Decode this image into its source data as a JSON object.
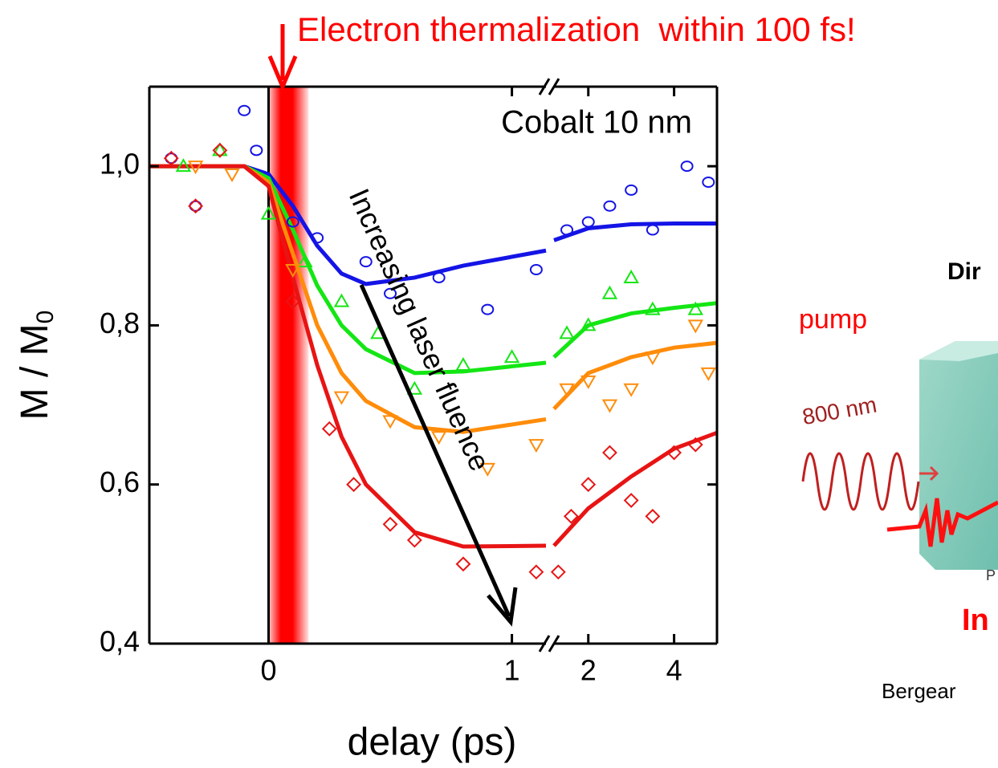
{
  "chart_data": {
    "type": "scatter",
    "title": "Electron thermalization  within 100 fs!",
    "annotation": "Cobalt 10 nm",
    "arrow_label": "Increasing laser fluence",
    "xlabel": "delay (ps)",
    "ylabel": "M / M",
    "ylabel_sub": "0",
    "x_segments": [
      {
        "xlim": [
          -0.49,
          1.14
        ],
        "xticks": [
          0,
          1
        ]
      },
      {
        "xlim": [
          1.2,
          5
        ],
        "xticks": [
          2,
          4
        ]
      }
    ],
    "ylim": [
      0.4,
      1.1
    ],
    "yticks": [
      {
        "value": 0.4,
        "label": "0,4"
      },
      {
        "value": 0.6,
        "label": "0,6"
      },
      {
        "value": 0.8,
        "label": "0,8"
      },
      {
        "value": 1.0,
        "label": "1,0"
      }
    ],
    "series": [
      {
        "color": "#1414e6",
        "marker": "circle",
        "x": [
          -0.4,
          -0.3,
          -0.1,
          -0.05,
          0.1,
          0.2,
          0.4,
          0.5,
          0.7,
          0.9,
          1.1,
          1.5,
          2,
          2.5,
          3,
          3.5,
          4.3,
          4.8
        ],
        "values": [
          1.01,
          0.95,
          1.07,
          1.02,
          0.93,
          0.91,
          0.88,
          0.84,
          0.86,
          0.82,
          0.87,
          0.92,
          0.93,
          0.95,
          0.97,
          0.92,
          1.0,
          0.98
        ],
        "fit": [
          {
            "x": [
              -0.49,
              -0.1,
              0,
              0.1,
              0.2,
              0.3,
              0.4,
              0.6,
              0.8,
              1.14
            ],
            "values": [
              1.0,
              1.0,
              0.99,
              0.95,
              0.9,
              0.865,
              0.852,
              0.86,
              0.875,
              0.894
            ]
          },
          {
            "x": [
              1.2,
              2,
              3,
              4,
              5
            ],
            "values": [
              0.907,
              0.922,
              0.927,
              0.928,
              0.928
            ]
          }
        ]
      },
      {
        "color": "#14e614",
        "marker": "triangle-up",
        "x": [
          -0.35,
          -0.2,
          0,
          0.15,
          0.3,
          0.45,
          0.6,
          0.8,
          1.0,
          1.5,
          2,
          2.5,
          3,
          3.5,
          4.5
        ],
        "values": [
          1.0,
          1.02,
          0.94,
          0.88,
          0.83,
          0.79,
          0.72,
          0.75,
          0.76,
          0.79,
          0.8,
          0.84,
          0.86,
          0.82,
          0.82
        ],
        "fit": [
          {
            "x": [
              -0.49,
              -0.1,
              0,
              0.1,
              0.2,
              0.3,
              0.4,
              0.6,
              0.8,
              1.14
            ],
            "values": [
              1.0,
              1.0,
              0.985,
              0.92,
              0.85,
              0.8,
              0.77,
              0.74,
              0.742,
              0.753
            ]
          },
          {
            "x": [
              1.2,
              2,
              3,
              4,
              5
            ],
            "values": [
              0.76,
              0.8,
              0.815,
              0.822,
              0.828
            ]
          }
        ]
      },
      {
        "color": "#ff8c0a",
        "marker": "triangle-down",
        "x": [
          -0.3,
          -0.15,
          0.1,
          0.3,
          0.5,
          0.7,
          0.9,
          1.1,
          1.5,
          2,
          2.5,
          3,
          3.5,
          4.5,
          4.8
        ],
        "values": [
          1.0,
          0.99,
          0.87,
          0.71,
          0.68,
          0.66,
          0.62,
          0.65,
          0.72,
          0.73,
          0.7,
          0.72,
          0.76,
          0.8,
          0.74
        ],
        "fit": [
          {
            "x": [
              -0.49,
              -0.1,
              0,
              0.1,
              0.2,
              0.3,
              0.4,
              0.6,
              0.8,
              1.14
            ],
            "values": [
              1.0,
              1.0,
              0.98,
              0.89,
              0.8,
              0.74,
              0.705,
              0.672,
              0.666,
              0.682
            ]
          },
          {
            "x": [
              1.2,
              2,
              3,
              4,
              5
            ],
            "values": [
              0.695,
              0.74,
              0.76,
              0.772,
              0.778
            ]
          }
        ]
      },
      {
        "color": "#e81414",
        "marker": "diamond",
        "x": [
          -0.4,
          -0.3,
          -0.2,
          0.1,
          0.25,
          0.35,
          0.5,
          0.6,
          0.8,
          1.1,
          1.3,
          1.6,
          2,
          2.5,
          3,
          3.5,
          4,
          4.5
        ],
        "values": [
          1.01,
          0.95,
          1.02,
          0.83,
          0.67,
          0.6,
          0.55,
          0.53,
          0.5,
          0.49,
          0.49,
          0.56,
          0.6,
          0.64,
          0.58,
          0.56,
          0.64,
          0.65
        ],
        "fit": [
          {
            "x": [
              -0.49,
              -0.1,
              0,
              0.1,
              0.2,
              0.3,
              0.4,
              0.6,
              0.8,
              1.14
            ],
            "values": [
              1.0,
              1.0,
              0.975,
              0.86,
              0.75,
              0.66,
              0.6,
              0.54,
              0.522,
              0.523
            ]
          },
          {
            "x": [
              1.2,
              2,
              3,
              4,
              5
            ],
            "values": [
              0.523,
              0.57,
              0.61,
              0.645,
              0.665
            ]
          }
        ]
      }
    ]
  },
  "side_panel": {
    "heading": "Dir",
    "pump": "pump",
    "wavelength": "800 nm",
    "probe_tag": "P",
    "caption": "In",
    "credit": "Bergear"
  }
}
